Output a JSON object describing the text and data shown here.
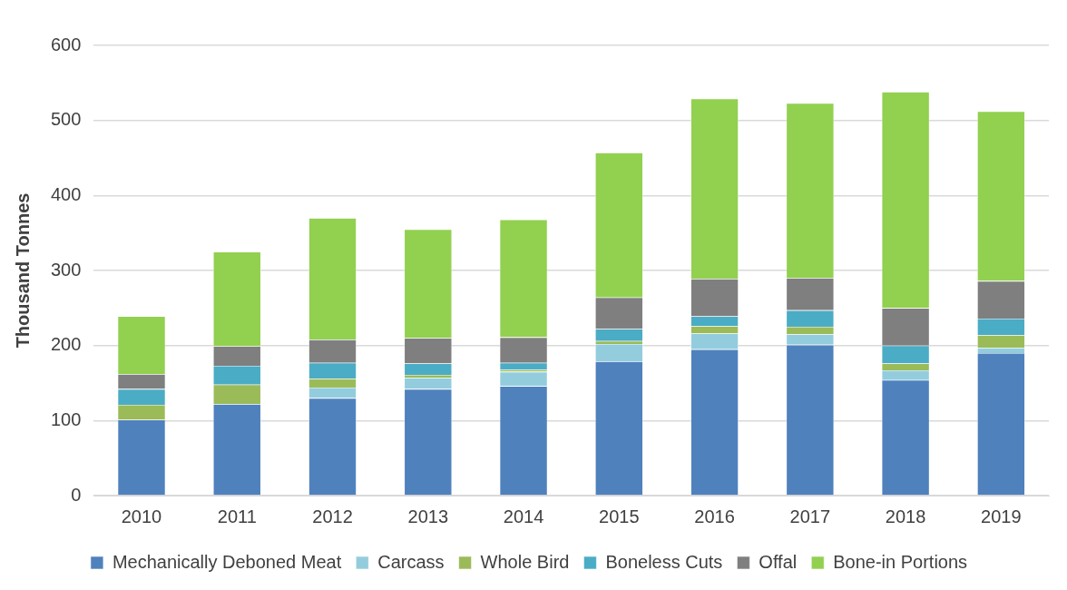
{
  "chart_data": {
    "type": "bar",
    "stacked": true,
    "ylabel": "Thousand Tonnes",
    "categories": [
      "2010",
      "2011",
      "2012",
      "2013",
      "2014",
      "2015",
      "2016",
      "2017",
      "2018",
      "2019"
    ],
    "series": [
      {
        "name": "Mechanically Deboned Meat",
        "color": "#4f81bd",
        "values": [
          101,
          122,
          130,
          142,
          146,
          179,
          195,
          201,
          154,
          190
        ]
      },
      {
        "name": "Carcass",
        "color": "#93cddd",
        "values": [
          0,
          0,
          14,
          15,
          19,
          23,
          21,
          14,
          13,
          7
        ]
      },
      {
        "name": "Whole Bird",
        "color": "#9bbb59",
        "values": [
          20,
          26,
          12,
          4,
          3,
          4,
          10,
          10,
          9,
          17
        ]
      },
      {
        "name": "Boneless Cuts",
        "color": "#4bacc6",
        "values": [
          21,
          25,
          21,
          15,
          9,
          16,
          13,
          22,
          24,
          22
        ]
      },
      {
        "name": "Offal",
        "color": "#7f7f7f",
        "values": [
          20,
          26,
          31,
          34,
          34,
          42,
          50,
          43,
          50,
          50
        ]
      },
      {
        "name": "Bone-in Portions",
        "color": "#92d050",
        "values": [
          77,
          126,
          162,
          145,
          157,
          193,
          240,
          233,
          288,
          226
        ]
      }
    ],
    "ylim": [
      0,
      600
    ],
    "yticks": [
      0,
      100,
      200,
      300,
      400,
      500,
      600
    ],
    "grid": "y",
    "legend": "bottom"
  }
}
